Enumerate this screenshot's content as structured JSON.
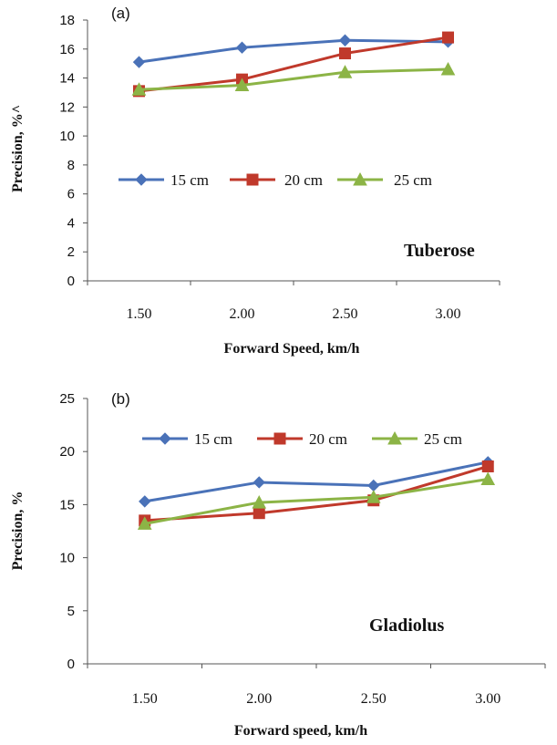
{
  "chart_data": [
    {
      "type": "line",
      "panel_label": "(a)",
      "annotation": "Tuberose",
      "xlabel": "Forward Speed, km/h",
      "ylabel": "Precision, %^",
      "categories": [
        "1.50",
        "2.00",
        "2.50",
        "3.00"
      ],
      "ylim": [
        0,
        18
      ],
      "yticks": [
        "0",
        "2",
        "4",
        "6",
        "8",
        "10",
        "12",
        "14",
        "16",
        "18"
      ],
      "legend_position": "middle-left",
      "grid": false,
      "series": [
        {
          "name": "15 cm",
          "marker": "diamond",
          "color": "#4a72b8",
          "values": [
            15.1,
            16.1,
            16.6,
            16.5
          ]
        },
        {
          "name": "20 cm",
          "marker": "square",
          "color": "#c0392b",
          "values": [
            13.1,
            13.9,
            15.7,
            16.8
          ]
        },
        {
          "name": "25 cm",
          "marker": "triangle",
          "color": "#8cb446",
          "values": [
            13.2,
            13.5,
            14.4,
            14.6
          ]
        }
      ]
    },
    {
      "type": "line",
      "panel_label": "(b)",
      "annotation": "Gladiolus",
      "xlabel": "Forward speed, km/h",
      "ylabel": "Precision, %",
      "categories": [
        "1.50",
        "2.00",
        "2.50",
        "3.00"
      ],
      "ylim": [
        0,
        25
      ],
      "yticks": [
        "0",
        "5",
        "10",
        "15",
        "20",
        "25"
      ],
      "legend_position": "top",
      "grid": false,
      "series": [
        {
          "name": "15 cm",
          "marker": "diamond",
          "color": "#4a72b8",
          "values": [
            15.3,
            17.1,
            16.8,
            19.0
          ]
        },
        {
          "name": "20 cm",
          "marker": "square",
          "color": "#c0392b",
          "values": [
            13.5,
            14.2,
            15.4,
            18.6
          ]
        },
        {
          "name": "25 cm",
          "marker": "triangle",
          "color": "#8cb446",
          "values": [
            13.2,
            15.2,
            15.7,
            17.4
          ]
        }
      ]
    }
  ]
}
